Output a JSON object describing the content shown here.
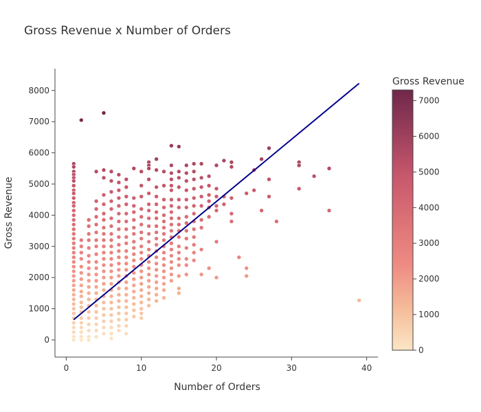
{
  "chart_data": {
    "type": "scatter",
    "title": "Gross Revenue x Number of Orders",
    "xlabel": "Number of Orders",
    "ylabel": "Gross Revenue",
    "xlim": [
      -1.5,
      41.5
    ],
    "ylim": [
      -550,
      8700
    ],
    "xticks": [
      0,
      10,
      20,
      30,
      40
    ],
    "yticks": [
      0,
      1000,
      2000,
      3000,
      4000,
      5000,
      6000,
      7000,
      8000
    ],
    "grid": false,
    "colorbar": {
      "title": "Gross Revenue",
      "range": [
        0,
        7300
      ],
      "ticks": [
        0,
        1000,
        2000,
        3000,
        4000,
        5000,
        6000,
        7000
      ],
      "colorscale": [
        "#fbe6c5",
        "#f5ba98",
        "#ee8a82",
        "#dc7176",
        "#c8586c",
        "#9c3f5d",
        "#70284a"
      ]
    },
    "trendline": {
      "color": "#00008b",
      "points": [
        [
          1,
          650
        ],
        [
          39,
          8230
        ]
      ]
    },
    "points": [
      [
        1,
        5650
      ],
      [
        1,
        5550
      ],
      [
        1,
        5400
      ],
      [
        1,
        5300
      ],
      [
        1,
        5200
      ],
      [
        1,
        5100
      ],
      [
        1,
        4950
      ],
      [
        1,
        4800
      ],
      [
        1,
        4700
      ],
      [
        1,
        4550
      ],
      [
        1,
        4400
      ],
      [
        1,
        4300
      ],
      [
        1,
        4150
      ],
      [
        1,
        4000
      ],
      [
        1,
        3850
      ],
      [
        1,
        3700
      ],
      [
        1,
        3550
      ],
      [
        1,
        3400
      ],
      [
        1,
        3250
      ],
      [
        1,
        3100
      ],
      [
        1,
        2950
      ],
      [
        1,
        2800
      ],
      [
        1,
        2650
      ],
      [
        1,
        2500
      ],
      [
        1,
        2350
      ],
      [
        1,
        2200
      ],
      [
        1,
        2050
      ],
      [
        1,
        1900
      ],
      [
        1,
        1750
      ],
      [
        1,
        1600
      ],
      [
        1,
        1450
      ],
      [
        1,
        1300
      ],
      [
        1,
        1150
      ],
      [
        1,
        1000
      ],
      [
        1,
        850
      ],
      [
        1,
        700
      ],
      [
        1,
        550
      ],
      [
        1,
        400
      ],
      [
        1,
        250
      ],
      [
        1,
        100
      ],
      [
        1,
        0
      ],
      [
        2,
        7050
      ],
      [
        2,
        3200
      ],
      [
        2,
        3000
      ],
      [
        2,
        2800
      ],
      [
        2,
        2600
      ],
      [
        2,
        2350
      ],
      [
        2,
        2150
      ],
      [
        2,
        1950
      ],
      [
        2,
        1750
      ],
      [
        2,
        1550
      ],
      [
        2,
        1400
      ],
      [
        2,
        1200
      ],
      [
        2,
        1050
      ],
      [
        2,
        900
      ],
      [
        2,
        700
      ],
      [
        2,
        550
      ],
      [
        2,
        400
      ],
      [
        2,
        250
      ],
      [
        2,
        100
      ],
      [
        2,
        0
      ],
      [
        3,
        3850
      ],
      [
        3,
        3650
      ],
      [
        3,
        3400
      ],
      [
        3,
        3200
      ],
      [
        3,
        2950
      ],
      [
        3,
        2700
      ],
      [
        3,
        2500
      ],
      [
        3,
        2300
      ],
      [
        3,
        2100
      ],
      [
        3,
        1900
      ],
      [
        3,
        1700
      ],
      [
        3,
        1500
      ],
      [
        3,
        1300
      ],
      [
        3,
        1100
      ],
      [
        3,
        900
      ],
      [
        3,
        700
      ],
      [
        3,
        500
      ],
      [
        3,
        300
      ],
      [
        3,
        100
      ],
      [
        3,
        0
      ],
      [
        4,
        5400
      ],
      [
        4,
        4450
      ],
      [
        4,
        4200
      ],
      [
        4,
        3950
      ],
      [
        4,
        3700
      ],
      [
        4,
        3450
      ],
      [
        4,
        3200
      ],
      [
        4,
        3000
      ],
      [
        4,
        2750
      ],
      [
        4,
        2500
      ],
      [
        4,
        2300
      ],
      [
        4,
        2100
      ],
      [
        4,
        1900
      ],
      [
        4,
        1700
      ],
      [
        4,
        1500
      ],
      [
        4,
        1300
      ],
      [
        4,
        1100
      ],
      [
        4,
        900
      ],
      [
        4,
        700
      ],
      [
        4,
        500
      ],
      [
        4,
        300
      ],
      [
        4,
        100
      ],
      [
        5,
        7280
      ],
      [
        5,
        5450
      ],
      [
        5,
        5200
      ],
      [
        5,
        4650
      ],
      [
        5,
        4350
      ],
      [
        5,
        4050
      ],
      [
        5,
        3850
      ],
      [
        5,
        3600
      ],
      [
        5,
        3400
      ],
      [
        5,
        3200
      ],
      [
        5,
        3000
      ],
      [
        5,
        2800
      ],
      [
        5,
        2600
      ],
      [
        5,
        2400
      ],
      [
        5,
        2200
      ],
      [
        5,
        2000
      ],
      [
        5,
        1800
      ],
      [
        5,
        1600
      ],
      [
        5,
        1400
      ],
      [
        5,
        1200
      ],
      [
        5,
        1000
      ],
      [
        5,
        800
      ],
      [
        5,
        600
      ],
      [
        5,
        400
      ],
      [
        5,
        200
      ],
      [
        6,
        5400
      ],
      [
        6,
        5100
      ],
      [
        6,
        4750
      ],
      [
        6,
        4450
      ],
      [
        6,
        4200
      ],
      [
        6,
        3900
      ],
      [
        6,
        3650
      ],
      [
        6,
        3400
      ],
      [
        6,
        3200
      ],
      [
        6,
        3000
      ],
      [
        6,
        2800
      ],
      [
        6,
        2600
      ],
      [
        6,
        2400
      ],
      [
        6,
        2200
      ],
      [
        6,
        2000
      ],
      [
        6,
        1800
      ],
      [
        6,
        1600
      ],
      [
        6,
        1400
      ],
      [
        6,
        1200
      ],
      [
        6,
        1000
      ],
      [
        6,
        800
      ],
      [
        6,
        600
      ],
      [
        6,
        400
      ],
      [
        6,
        200
      ],
      [
        6,
        50
      ],
      [
        7,
        5300
      ],
      [
        7,
        5050
      ],
      [
        7,
        4800
      ],
      [
        7,
        4550
      ],
      [
        7,
        4300
      ],
      [
        7,
        4050
      ],
      [
        7,
        3800
      ],
      [
        7,
        3550
      ],
      [
        7,
        3300
      ],
      [
        7,
        3050
      ],
      [
        7,
        2850
      ],
      [
        7,
        2650
      ],
      [
        7,
        2450
      ],
      [
        7,
        2250
      ],
      [
        7,
        2050
      ],
      [
        7,
        1850
      ],
      [
        7,
        1650
      ],
      [
        7,
        1450
      ],
      [
        7,
        1250
      ],
      [
        7,
        1050
      ],
      [
        7,
        850
      ],
      [
        7,
        650
      ],
      [
        7,
        450
      ],
      [
        7,
        300
      ],
      [
        8,
        5150
      ],
      [
        8,
        4900
      ],
      [
        8,
        4600
      ],
      [
        8,
        4350
      ],
      [
        8,
        4050
      ],
      [
        8,
        3800
      ],
      [
        8,
        3550
      ],
      [
        8,
        3300
      ],
      [
        8,
        3100
      ],
      [
        8,
        2850
      ],
      [
        8,
        2650
      ],
      [
        8,
        2450
      ],
      [
        8,
        2250
      ],
      [
        8,
        2050
      ],
      [
        8,
        1850
      ],
      [
        8,
        1650
      ],
      [
        8,
        1450
      ],
      [
        8,
        1250
      ],
      [
        8,
        1050
      ],
      [
        8,
        850
      ],
      [
        8,
        650
      ],
      [
        8,
        450
      ],
      [
        8,
        200
      ],
      [
        9,
        5500
      ],
      [
        9,
        4550
      ],
      [
        9,
        4300
      ],
      [
        9,
        4100
      ],
      [
        9,
        3850
      ],
      [
        9,
        3600
      ],
      [
        9,
        3400
      ],
      [
        9,
        3150
      ],
      [
        9,
        2950
      ],
      [
        9,
        2750
      ],
      [
        9,
        2550
      ],
      [
        9,
        2350
      ],
      [
        9,
        2150
      ],
      [
        9,
        1950
      ],
      [
        9,
        1750
      ],
      [
        9,
        1550
      ],
      [
        9,
        1350
      ],
      [
        9,
        1150
      ],
      [
        9,
        950
      ],
      [
        9,
        750
      ],
      [
        10,
        5400
      ],
      [
        10,
        4950
      ],
      [
        10,
        4600
      ],
      [
        10,
        4200
      ],
      [
        10,
        3950
      ],
      [
        10,
        3700
      ],
      [
        10,
        3450
      ],
      [
        10,
        3250
      ],
      [
        10,
        3000
      ],
      [
        10,
        2800
      ],
      [
        10,
        2600
      ],
      [
        10,
        2400
      ],
      [
        10,
        2200
      ],
      [
        10,
        2000
      ],
      [
        10,
        1800
      ],
      [
        10,
        1600
      ],
      [
        10,
        1400
      ],
      [
        10,
        1200
      ],
      [
        10,
        1000
      ],
      [
        10,
        850
      ],
      [
        10,
        700
      ],
      [
        11,
        5700
      ],
      [
        11,
        5600
      ],
      [
        11,
        5500
      ],
      [
        11,
        5150
      ],
      [
        11,
        4700
      ],
      [
        11,
        4350
      ],
      [
        11,
        4150
      ],
      [
        11,
        3900
      ],
      [
        11,
        3650
      ],
      [
        11,
        3400
      ],
      [
        11,
        3150
      ],
      [
        11,
        2900
      ],
      [
        11,
        2700
      ],
      [
        11,
        2500
      ],
      [
        11,
        2300
      ],
      [
        11,
        2100
      ],
      [
        11,
        1900
      ],
      [
        11,
        1700
      ],
      [
        11,
        1500
      ],
      [
        11,
        1300
      ],
      [
        11,
        1100
      ],
      [
        12,
        5800
      ],
      [
        12,
        5450
      ],
      [
        12,
        4900
      ],
      [
        12,
        4600
      ],
      [
        12,
        4350
      ],
      [
        12,
        4100
      ],
      [
        12,
        3900
      ],
      [
        12,
        3650
      ],
      [
        12,
        3450
      ],
      [
        12,
        3250
      ],
      [
        12,
        3050
      ],
      [
        12,
        2850
      ],
      [
        12,
        2650
      ],
      [
        12,
        2450
      ],
      [
        12,
        2250
      ],
      [
        12,
        2050
      ],
      [
        12,
        1850
      ],
      [
        12,
        1650
      ],
      [
        12,
        1450
      ],
      [
        12,
        1250
      ],
      [
        13,
        5400
      ],
      [
        13,
        4950
      ],
      [
        13,
        4500
      ],
      [
        13,
        4250
      ],
      [
        13,
        4000
      ],
      [
        13,
        3800
      ],
      [
        13,
        3600
      ],
      [
        13,
        3400
      ],
      [
        13,
        3200
      ],
      [
        13,
        3000
      ],
      [
        13,
        2800
      ],
      [
        13,
        2600
      ],
      [
        13,
        2400
      ],
      [
        13,
        2200
      ],
      [
        13,
        2000
      ],
      [
        13,
        1800
      ],
      [
        13,
        1600
      ],
      [
        13,
        1350
      ],
      [
        14,
        6230
      ],
      [
        14,
        5600
      ],
      [
        14,
        5350
      ],
      [
        14,
        5150
      ],
      [
        14,
        4950
      ],
      [
        14,
        4800
      ],
      [
        14,
        4500
      ],
      [
        14,
        4300
      ],
      [
        14,
        4100
      ],
      [
        14,
        3900
      ],
      [
        14,
        3700
      ],
      [
        14,
        3500
      ],
      [
        14,
        3300
      ],
      [
        14,
        3100
      ],
      [
        14,
        2900
      ],
      [
        14,
        2700
      ],
      [
        14,
        2500
      ],
      [
        14,
        2300
      ],
      [
        14,
        2100
      ],
      [
        14,
        1900
      ],
      [
        15,
        6200
      ],
      [
        15,
        5400
      ],
      [
        15,
        5200
      ],
      [
        15,
        4900
      ],
      [
        15,
        4500
      ],
      [
        15,
        4250
      ],
      [
        15,
        3900
      ],
      [
        15,
        3700
      ],
      [
        15,
        3500
      ],
      [
        15,
        3300
      ],
      [
        15,
        3000
      ],
      [
        15,
        2800
      ],
      [
        15,
        2600
      ],
      [
        15,
        2400
      ],
      [
        15,
        2050
      ],
      [
        15,
        1650
      ],
      [
        15,
        1500
      ],
      [
        16,
        5600
      ],
      [
        16,
        5350
      ],
      [
        16,
        5100
      ],
      [
        16,
        4800
      ],
      [
        16,
        4500
      ],
      [
        16,
        4250
      ],
      [
        16,
        3950
      ],
      [
        16,
        3750
      ],
      [
        16,
        3500
      ],
      [
        16,
        3250
      ],
      [
        16,
        2950
      ],
      [
        16,
        2600
      ],
      [
        16,
        2400
      ],
      [
        16,
        2100
      ],
      [
        17,
        5650
      ],
      [
        17,
        5400
      ],
      [
        17,
        5150
      ],
      [
        17,
        4850
      ],
      [
        17,
        4550
      ],
      [
        17,
        4300
      ],
      [
        17,
        4050
      ],
      [
        17,
        3800
      ],
      [
        17,
        3550
      ],
      [
        17,
        3300
      ],
      [
        17,
        3050
      ],
      [
        17,
        2800
      ],
      [
        17,
        2550
      ],
      [
        18,
        5650
      ],
      [
        18,
        5200
      ],
      [
        18,
        4900
      ],
      [
        18,
        4600
      ],
      [
        18,
        4300
      ],
      [
        18,
        3850
      ],
      [
        18,
        3600
      ],
      [
        18,
        2900
      ],
      [
        18,
        2100
      ],
      [
        19,
        5250
      ],
      [
        19,
        4950
      ],
      [
        19,
        4650
      ],
      [
        19,
        4450
      ],
      [
        19,
        4250
      ],
      [
        19,
        3950
      ],
      [
        19,
        2300
      ],
      [
        20,
        5600
      ],
      [
        20,
        4850
      ],
      [
        20,
        4600
      ],
      [
        20,
        4300
      ],
      [
        20,
        4150
      ],
      [
        20,
        3150
      ],
      [
        20,
        2000
      ],
      [
        21,
        5750
      ],
      [
        21,
        4600
      ],
      [
        21,
        4350
      ],
      [
        22,
        5700
      ],
      [
        22,
        5550
      ],
      [
        22,
        4550
      ],
      [
        22,
        4050
      ],
      [
        22,
        3800
      ],
      [
        23,
        2650
      ],
      [
        24,
        4700
      ],
      [
        24,
        2300
      ],
      [
        24,
        2050
      ],
      [
        25,
        5450
      ],
      [
        25,
        4800
      ],
      [
        26,
        5800
      ],
      [
        26,
        4150
      ],
      [
        27,
        6150
      ],
      [
        27,
        5150
      ],
      [
        27,
        4600
      ],
      [
        28,
        3800
      ],
      [
        31,
        5700
      ],
      [
        31,
        5600
      ],
      [
        31,
        4850
      ],
      [
        33,
        5250
      ],
      [
        35,
        5500
      ],
      [
        35,
        4150
      ],
      [
        39,
        1270
      ]
    ]
  }
}
